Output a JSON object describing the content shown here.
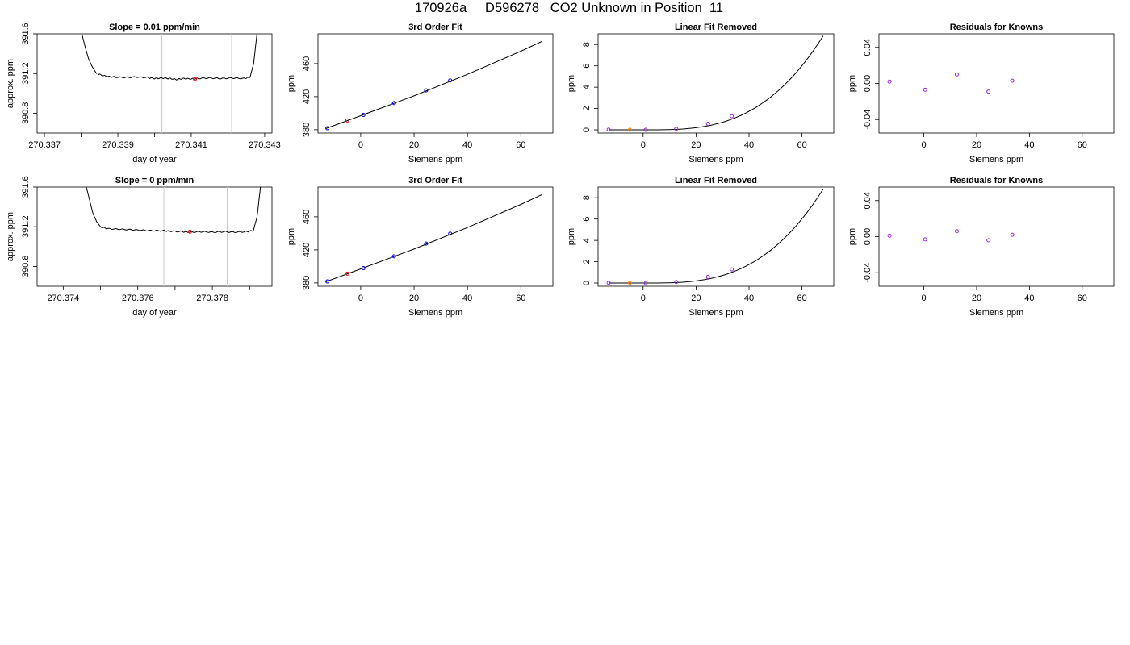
{
  "title": "170926a     D596278   CO2 Unknown in Position  11",
  "colors": {
    "line": "#000000",
    "known": "#0000ff",
    "unknown": "#ff0000",
    "residual": "#a020f0",
    "unknown_lin": "#ff8000",
    "marker_line": "#c8c8c8"
  },
  "chart_data": [
    {
      "id": "r1-trace",
      "type": "line",
      "title": "Slope =  0.01  ppm/min",
      "xlabel": "day of year",
      "ylabel": "approx. ppm",
      "xlim": [
        270.3368,
        270.3432
      ],
      "ylim": [
        390.6,
        391.6
      ],
      "xticks": [
        "270.337",
        "270.339",
        "270.341",
        "270.343"
      ],
      "yticks": [
        "390.8",
        "391.2",
        "391.6"
      ],
      "vlines": [
        270.3402,
        270.3421
      ],
      "series": [
        {
          "values": [
            [
              270.338,
              391.63
            ],
            [
              270.3381,
              391.48
            ],
            [
              270.3382,
              391.35
            ],
            [
              270.3383,
              391.27
            ],
            [
              270.3384,
              391.21
            ],
            [
              270.3385,
              391.19
            ],
            [
              270.3387,
              391.17
            ],
            [
              270.3389,
              391.165
            ],
            [
              270.3392,
              391.16
            ],
            [
              270.3395,
              391.165
            ],
            [
              270.3398,
              391.16
            ],
            [
              270.34,
              391.15
            ],
            [
              270.3402,
              391.155
            ],
            [
              270.3404,
              391.15
            ],
            [
              270.3406,
              391.14
            ],
            [
              270.3408,
              391.15
            ],
            [
              270.341,
              391.145
            ],
            [
              270.3412,
              391.15
            ],
            [
              270.3415,
              391.155
            ],
            [
              270.3418,
              391.15
            ],
            [
              270.3421,
              391.155
            ],
            [
              270.3424,
              391.15
            ],
            [
              270.3426,
              391.16
            ],
            [
              270.3427,
              391.3
            ],
            [
              270.3428,
              391.63
            ]
          ]
        }
      ],
      "marker": {
        "x": 270.3411,
        "y": 391.145
      }
    },
    {
      "id": "r1-fit",
      "type": "scatter",
      "title": "3rd Order Fit",
      "xlabel": "Siemens ppm",
      "ylabel": "ppm",
      "xlim": [
        -16,
        72
      ],
      "ylim": [
        376,
        496
      ],
      "xticks": [
        "0",
        "20",
        "40",
        "60"
      ],
      "yticks": [
        "380",
        "420",
        "460"
      ],
      "curve": [
        [
          -13,
          381.5
        ],
        [
          0,
          397
        ],
        [
          20,
          421
        ],
        [
          40,
          447
        ],
        [
          60,
          475
        ],
        [
          68,
          487
        ]
      ],
      "knowns": [
        [
          -12.5,
          381.8
        ],
        [
          1,
          397.9
        ],
        [
          12.5,
          412.2
        ],
        [
          24.5,
          427.6
        ],
        [
          33.5,
          439.6
        ]
      ],
      "unknowns": [
        [
          -5,
          391.2
        ]
      ]
    },
    {
      "id": "r1-linrem",
      "type": "scatter",
      "title": "Linear Fit Removed",
      "xlabel": "Siemens ppm",
      "ylabel": "ppm",
      "xlim": [
        -17,
        72
      ],
      "ylim": [
        -0.3,
        9
      ],
      "xticks": [
        "0",
        "20",
        "40",
        "60"
      ],
      "yticks": [
        "0",
        "2",
        "4",
        "6",
        "8"
      ],
      "curve_cubic": {
        "a": 2.93e-05,
        "x0": 1
      },
      "knowns": [
        [
          -13,
          0.02
        ],
        [
          1,
          0.0
        ],
        [
          12.5,
          0.1
        ],
        [
          24.5,
          0.57
        ],
        [
          33.5,
          1.28
        ]
      ],
      "unknowns": [
        [
          -5,
          0.01
        ]
      ]
    },
    {
      "id": "r1-resid",
      "type": "scatter",
      "title": "Residuals for Knowns",
      "xlabel": "Siemens ppm",
      "ylabel": "ppm",
      "xlim": [
        -17,
        72
      ],
      "ylim": [
        -0.055,
        0.055
      ],
      "xticks": [
        "0",
        "20",
        "40",
        "60"
      ],
      "yticks": [
        "-0.04",
        "0.00",
        "0.04"
      ],
      "knowns": [
        [
          -13,
          0.002
        ],
        [
          0.5,
          -0.007
        ],
        [
          12.5,
          0.01
        ],
        [
          24.5,
          -0.009
        ],
        [
          33.5,
          0.003
        ]
      ]
    },
    {
      "id": "r2-trace",
      "type": "line",
      "title": "Slope =  0  ppm/min",
      "xlabel": "day of year",
      "ylabel": "approx. ppm",
      "xlim": [
        270.3733,
        270.3796
      ],
      "ylim": [
        390.6,
        391.6
      ],
      "xticks": [
        "270.374",
        "270.376",
        "270.378"
      ],
      "yticks": [
        "390.8",
        "391.2",
        "391.6"
      ],
      "vlines": [
        270.3767,
        270.3784
      ],
      "series": [
        {
          "values": [
            [
              270.3746,
              391.63
            ],
            [
              270.3747,
              391.48
            ],
            [
              270.3748,
              391.33
            ],
            [
              270.3749,
              391.25
            ],
            [
              270.375,
              391.2
            ],
            [
              270.3752,
              391.18
            ],
            [
              270.3755,
              391.175
            ],
            [
              270.3758,
              391.17
            ],
            [
              270.3761,
              391.165
            ],
            [
              270.3764,
              391.16
            ],
            [
              270.3767,
              391.16
            ],
            [
              270.3769,
              391.155
            ],
            [
              270.3772,
              391.15
            ],
            [
              270.3774,
              391.145
            ],
            [
              270.3777,
              391.15
            ],
            [
              270.378,
              391.145
            ],
            [
              270.3783,
              391.15
            ],
            [
              270.3786,
              391.145
            ],
            [
              270.3789,
              391.15
            ],
            [
              270.3791,
              391.16
            ],
            [
              270.3792,
              391.3
            ],
            [
              270.3793,
              391.63
            ]
          ]
        }
      ],
      "marker": {
        "x": 270.3774,
        "y": 391.15
      }
    },
    {
      "id": "r2-fit",
      "type": "scatter",
      "title": "3rd Order Fit",
      "xlabel": "Siemens ppm",
      "ylabel": "ppm",
      "xlim": [
        -16,
        72
      ],
      "ylim": [
        376,
        496
      ],
      "xticks": [
        "0",
        "20",
        "40",
        "60"
      ],
      "yticks": [
        "380",
        "420",
        "460"
      ],
      "curve": [
        [
          -13,
          381.5
        ],
        [
          0,
          397
        ],
        [
          20,
          421
        ],
        [
          40,
          447
        ],
        [
          60,
          475
        ],
        [
          68,
          487
        ]
      ],
      "knowns": [
        [
          -12.5,
          381.8
        ],
        [
          1,
          397.9
        ],
        [
          12.5,
          412.2
        ],
        [
          24.5,
          427.6
        ],
        [
          33.5,
          439.6
        ]
      ],
      "unknowns": [
        [
          -5,
          391.2
        ]
      ]
    },
    {
      "id": "r2-linrem",
      "type": "scatter",
      "title": "Linear Fit Removed",
      "xlabel": "Siemens ppm",
      "ylabel": "ppm",
      "xlim": [
        -17,
        72
      ],
      "ylim": [
        -0.3,
        9
      ],
      "xticks": [
        "0",
        "20",
        "40",
        "60"
      ],
      "yticks": [
        "0",
        "2",
        "4",
        "6",
        "8"
      ],
      "curve_cubic": {
        "a": 2.93e-05,
        "x0": 1
      },
      "knowns": [
        [
          -13,
          0.02
        ],
        [
          1,
          0.0
        ],
        [
          12.5,
          0.1
        ],
        [
          24.5,
          0.57
        ],
        [
          33.5,
          1.28
        ]
      ],
      "unknowns": [
        [
          -5,
          0.01
        ]
      ]
    },
    {
      "id": "r2-resid",
      "type": "scatter",
      "title": "Residuals for Knowns",
      "xlabel": "Siemens ppm",
      "ylabel": "ppm",
      "xlim": [
        -17,
        72
      ],
      "ylim": [
        -0.055,
        0.055
      ],
      "xticks": [
        "0",
        "20",
        "40",
        "60"
      ],
      "yticks": [
        "-0.04",
        "0.00",
        "0.04"
      ],
      "knowns": [
        [
          -13,
          0.001
        ],
        [
          0.5,
          -0.003
        ],
        [
          12.5,
          0.006
        ],
        [
          24.5,
          -0.004
        ],
        [
          33.5,
          0.002
        ]
      ]
    }
  ]
}
